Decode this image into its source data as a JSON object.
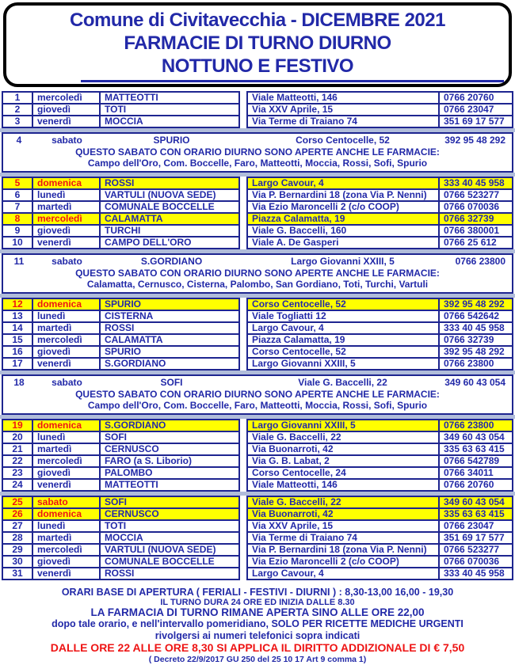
{
  "header": {
    "title_line1": "Comune di Civitavecchia - DICEMBRE 2021",
    "title_line2": "FARMACIE DI TURNO DIURNO",
    "title_line3": "NOTTUNO E FESTIVO"
  },
  "colors": {
    "text_navy": "#2229a8",
    "border_navy": "#1e2590",
    "holiday_red": "#ee1414",
    "holiday_yellow": "#ffff00",
    "gap_blue": "#b0bcda",
    "header_border": "#000000",
    "background": "#ffffff"
  },
  "schedule": {
    "blocks": [
      {
        "type": "rows",
        "rows": [
          {
            "day": "1",
            "weekday": "mercoledì",
            "pharmacy": "MATTEOTTI",
            "address": "Viale Matteotti, 146",
            "phone": "0766 20760",
            "highlight": false
          },
          {
            "day": "2",
            "weekday": "giovedì",
            "pharmacy": "TOTI",
            "address": "Via XXV Aprile, 15",
            "phone": "0766 23047",
            "highlight": false
          },
          {
            "day": "3",
            "weekday": "venerdì",
            "pharmacy": "MOCCIA",
            "address": "Via Terme di Traiano 74",
            "phone": "351 69 17 577",
            "highlight": false
          }
        ]
      },
      {
        "type": "saturday",
        "row": {
          "day": "4",
          "weekday": "sabato",
          "pharmacy": "SPURIO",
          "address": "Corso Centocelle, 52",
          "phone": "392 95 48 292"
        },
        "note_title": "QUESTO SABATO CON ORARIO DIURNO SONO APERTE ANCHE LE FARMACIE:",
        "note_pharmacies": "Campo dell'Oro, Com. Boccelle, Faro, Matteotti, Moccia, Rossi, Sofi, Spurio"
      },
      {
        "type": "rows",
        "rows": [
          {
            "day": "5",
            "weekday": "domenica",
            "pharmacy": "ROSSI",
            "address": "Largo Cavour, 4",
            "phone": "333 40 45 958",
            "highlight": true
          },
          {
            "day": "6",
            "weekday": "lunedì",
            "pharmacy": "VARTULI (NUOVA SEDE)",
            "address": "Via P. Bernardini 18 (zona Via P. Nenni)",
            "phone": "0766 523277",
            "highlight": false
          },
          {
            "day": "7",
            "weekday": "martedì",
            "pharmacy": "COMUNALE BOCCELLE",
            "address": "Via Ezio Maroncelli 2 (c/o COOP)",
            "phone": "0766 070036",
            "highlight": false
          },
          {
            "day": "8",
            "weekday": "mercoledì",
            "pharmacy": "CALAMATTA",
            "address": "Piazza Calamatta, 19",
            "phone": "0766 32739",
            "highlight": true
          },
          {
            "day": "9",
            "weekday": "giovedì",
            "pharmacy": "TURCHI",
            "address": "Viale G. Baccelli, 160",
            "phone": "0766 380001",
            "highlight": false
          },
          {
            "day": "10",
            "weekday": "venerdì",
            "pharmacy": "CAMPO DELL'ORO",
            "address": "Viale A. De Gasperi",
            "phone": "0766 25 612",
            "highlight": false
          }
        ]
      },
      {
        "type": "saturday",
        "row": {
          "day": "11",
          "weekday": "sabato",
          "pharmacy": "S.GORDIANO",
          "address": "Largo Giovanni XXIII, 5",
          "phone": "0766 23800"
        },
        "note_title": "QUESTO SABATO CON ORARIO DIURNO SONO APERTE ANCHE LE FARMACIE:",
        "note_pharmacies": "Calamatta, Cernusco, Cisterna, Palombo, San Gordiano, Toti, Turchi, Vartuli"
      },
      {
        "type": "rows",
        "rows": [
          {
            "day": "12",
            "weekday": "domenica",
            "pharmacy": "SPURIO",
            "address": "Corso Centocelle, 52",
            "phone": "392 95 48 292",
            "highlight": true
          },
          {
            "day": "13",
            "weekday": "lunedì",
            "pharmacy": "CISTERNA",
            "address": "Viale Togliatti 12",
            "phone": "0766 542642",
            "highlight": false
          },
          {
            "day": "14",
            "weekday": "martedì",
            "pharmacy": "ROSSI",
            "address": "Largo Cavour, 4",
            "phone": "333 40 45 958",
            "highlight": false
          },
          {
            "day": "15",
            "weekday": "mercoledì",
            "pharmacy": "CALAMATTA",
            "address": "Piazza Calamatta, 19",
            "phone": "0766 32739",
            "highlight": false
          },
          {
            "day": "16",
            "weekday": "giovedì",
            "pharmacy": "SPURIO",
            "address": "Corso Centocelle, 52",
            "phone": "392 95 48 292",
            "highlight": false
          },
          {
            "day": "17",
            "weekday": "venerdì",
            "pharmacy": "S.GORDIANO",
            "address": "Largo Giovanni XXIII, 5",
            "phone": "0766 23800",
            "highlight": false
          }
        ]
      },
      {
        "type": "saturday",
        "row": {
          "day": "18",
          "weekday": "sabato",
          "pharmacy": "SOFI",
          "address": "Viale G. Baccelli, 22",
          "phone": "349 60 43 054"
        },
        "note_title": "QUESTO SABATO CON ORARIO DIURNO SONO APERTE ANCHE LE FARMACIE:",
        "note_pharmacies": "Campo dell'Oro, Com. Boccelle, Faro, Matteotti, Moccia, Rossi, Sofi, Spurio"
      },
      {
        "type": "rows",
        "rows": [
          {
            "day": "19",
            "weekday": "domenica",
            "pharmacy": "S.GORDIANO",
            "address": "Largo Giovanni XXIII, 5",
            "phone": "0766 23800",
            "highlight": true
          },
          {
            "day": "20",
            "weekday": "lunedì",
            "pharmacy": "SOFI",
            "address": "Viale G. Baccelli, 22",
            "phone": "349 60 43 054",
            "highlight": false
          },
          {
            "day": "21",
            "weekday": "martedì",
            "pharmacy": "CERNUSCO",
            "address": "Via Buonarroti, 42",
            "phone": "335 63 63 415",
            "highlight": false
          },
          {
            "day": "22",
            "weekday": "mercoledì",
            "pharmacy": "FARO (a S. Liborio)",
            "address": "Via G. B. Labat, 2",
            "phone": "0766 542789",
            "highlight": false
          },
          {
            "day": "23",
            "weekday": "giovedì",
            "pharmacy": "PALOMBO",
            "address": "Corso Centocelle, 24",
            "phone": "0766 34011",
            "highlight": false
          },
          {
            "day": "24",
            "weekday": "venerdì",
            "pharmacy": "MATTEOTTI",
            "address": "Viale Matteotti, 146",
            "phone": "0766 20760",
            "highlight": false
          }
        ]
      },
      {
        "type": "rows",
        "rows": [
          {
            "day": "25",
            "weekday": "sabato",
            "pharmacy": "SOFI",
            "address": "Viale G. Baccelli, 22",
            "phone": "349 60 43 054",
            "highlight": true
          },
          {
            "day": "26",
            "weekday": "domenica",
            "pharmacy": "CERNUSCO",
            "address": "Via Buonarroti, 42",
            "phone": "335 63 63 415",
            "highlight": true
          },
          {
            "day": "27",
            "weekday": "lunedì",
            "pharmacy": "TOTI",
            "address": "Via XXV Aprile, 15",
            "phone": "0766 23047",
            "highlight": false
          },
          {
            "day": "28",
            "weekday": "martedì",
            "pharmacy": "MOCCIA",
            "address": "Via Terme di Traiano 74",
            "phone": "351 69 17 577",
            "highlight": false
          },
          {
            "day": "29",
            "weekday": "mercoledì",
            "pharmacy": "VARTULI (NUOVA SEDE)",
            "address": "Via P. Bernardini 18 (zona Via P. Nenni)",
            "phone": "0766 523277",
            "highlight": false
          },
          {
            "day": "30",
            "weekday": "giovedì",
            "pharmacy": "COMUNALE BOCCELLE",
            "address": "Via Ezio Maroncelli 2 (c/o COOP)",
            "phone": "0766 070036",
            "highlight": false
          },
          {
            "day": "31",
            "weekday": "venerdì",
            "pharmacy": "ROSSI",
            "address": "Largo Cavour, 4",
            "phone": "333 40 45 958",
            "highlight": false
          }
        ]
      }
    ]
  },
  "footer": {
    "line1": "ORARI BASE DI APERTURA ( FERIALI  -  FESTIVI  -  DIURNI ) : 8,30-13,00   16,00  - 19,30",
    "line2": "IL TURNO DURA 24 ORE ED INIZIA DALLE 8.30",
    "line3": "LA FARMACIA DI TURNO RIMANE APERTA SINO ALLE ORE 22,00",
    "line4": "dopo tale orario, e nell'intervallo pomeridiano, SOLO PER RICETTE MEDICHE URGENTI",
    "line5": "rivolgersi ai numeri telefonici sopra indicati",
    "line6": "DALLE ORE 22 ALLE ORE 8,30 SI APPLICA IL DIRITTO ADDIZIONALE DI € 7,50",
    "line7": "( Decreto 22/9/2017 GU 250 del 25 10 17 Art 9 comma 1)"
  }
}
